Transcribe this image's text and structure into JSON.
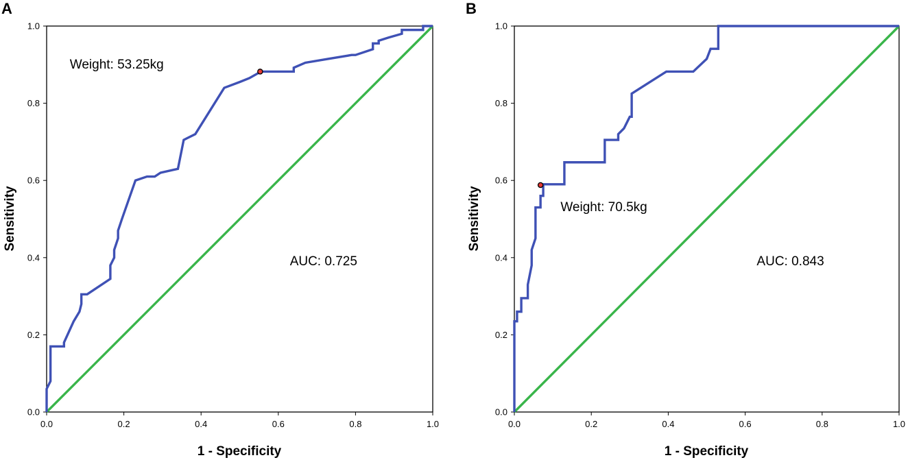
{
  "chart_data": [
    {
      "type": "line",
      "panel_label": "A",
      "xlabel": "1 - Specificity",
      "ylabel": "Sensitivity",
      "xlim": [
        0,
        1
      ],
      "ylim": [
        0,
        1
      ],
      "xticks": [
        "0.0",
        "0.2",
        "0.4",
        "0.6",
        "0.8",
        "1.0"
      ],
      "yticks": [
        "0.0",
        "0.2",
        "0.4",
        "0.6",
        "0.8",
        "1.0"
      ],
      "series": [
        {
          "name": "ROC curve",
          "color": "#3F51B5",
          "x": [
            0,
            0,
            0.01,
            0.01,
            0.045,
            0.045,
            0.07,
            0.085,
            0.09,
            0.09,
            0.105,
            0.165,
            0.165,
            0.175,
            0.175,
            0.185,
            0.185,
            0.195,
            0.23,
            0.26,
            0.28,
            0.295,
            0.34,
            0.355,
            0.365,
            0.385,
            0.46,
            0.5,
            0.525,
            0.555,
            0.64,
            0.64,
            0.67,
            0.73,
            0.79,
            0.8,
            0.845,
            0.845,
            0.86,
            0.86,
            0.885,
            0.92,
            0.92,
            0.975,
            0.975,
            1.0
          ],
          "y": [
            0,
            0.06,
            0.08,
            0.17,
            0.17,
            0.18,
            0.235,
            0.26,
            0.28,
            0.305,
            0.305,
            0.345,
            0.38,
            0.4,
            0.42,
            0.45,
            0.47,
            0.5,
            0.6,
            0.61,
            0.61,
            0.62,
            0.63,
            0.705,
            0.71,
            0.72,
            0.84,
            0.855,
            0.865,
            0.882,
            0.882,
            0.892,
            0.905,
            0.915,
            0.925,
            0.925,
            0.94,
            0.955,
            0.955,
            0.962,
            0.97,
            0.98,
            0.99,
            0.99,
            1.0,
            1.0
          ]
        },
        {
          "name": "Reference line",
          "color": "#39B54A",
          "x": [
            0,
            1
          ],
          "y": [
            0,
            1
          ]
        }
      ],
      "cutoff_point": {
        "x": 0.553,
        "y": 0.882,
        "color": "#E53935"
      },
      "annotations": {
        "cutoff": "Weight: 53.25kg",
        "auc": "AUC: 0.725"
      },
      "annotation_anchor": {
        "cutoff": [
          0.06,
          0.89
        ],
        "auc": [
          0.63,
          0.38
        ]
      }
    },
    {
      "type": "line",
      "panel_label": "B",
      "xlabel": "1 - Specificity",
      "ylabel": "Sensitivity",
      "xlim": [
        0,
        1
      ],
      "ylim": [
        0,
        1
      ],
      "xticks": [
        "0.0",
        "0.2",
        "0.4",
        "0.6",
        "0.8",
        "1.0"
      ],
      "yticks": [
        "0.0",
        "0.2",
        "0.4",
        "0.6",
        "0.8",
        "1.0"
      ],
      "series": [
        {
          "name": "ROC curve",
          "color": "#3F51B5",
          "x": [
            0,
            0,
            0.007,
            0.007,
            0.018,
            0.018,
            0.035,
            0.035,
            0.045,
            0.045,
            0.055,
            0.055,
            0.068,
            0.068,
            0.075,
            0.075,
            0.13,
            0.13,
            0.235,
            0.235,
            0.27,
            0.27,
            0.285,
            0.3,
            0.305,
            0.305,
            0.395,
            0.465,
            0.5,
            0.51,
            0.53,
            0.53,
            1.0
          ],
          "y": [
            0,
            0.235,
            0.235,
            0.26,
            0.26,
            0.295,
            0.295,
            0.33,
            0.38,
            0.42,
            0.45,
            0.53,
            0.53,
            0.56,
            0.56,
            0.59,
            0.59,
            0.647,
            0.647,
            0.705,
            0.705,
            0.72,
            0.735,
            0.765,
            0.765,
            0.825,
            0.882,
            0.882,
            0.915,
            0.941,
            0.941,
            1.0,
            1.0
          ]
        },
        {
          "name": "Reference line",
          "color": "#39B54A",
          "x": [
            0,
            1
          ],
          "y": [
            0,
            1
          ]
        }
      ],
      "cutoff_point": {
        "x": 0.068,
        "y": 0.588,
        "color": "#E53935"
      },
      "annotations": {
        "cutoff": "Weight: 70.5kg",
        "auc": "AUC: 0.843"
      },
      "annotation_anchor": {
        "cutoff": [
          0.12,
          0.52
        ],
        "auc": [
          0.63,
          0.38
        ]
      }
    }
  ]
}
